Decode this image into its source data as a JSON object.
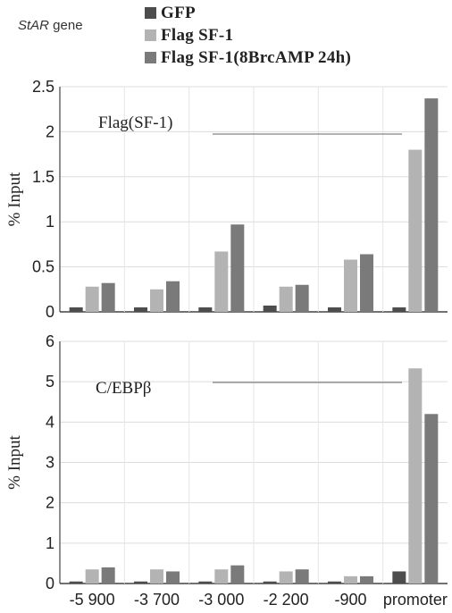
{
  "gene_label": {
    "italic": "StAR",
    "rest": " gene"
  },
  "colors": {
    "GFP": "#4d4d4d",
    "Flag SF-1": "#b3b3b3",
    "Flag SF-1(8BrcAMP 24h)": "#7a7a7a"
  },
  "chart_data": [
    {
      "type": "bar",
      "panel_label": "Flag(SF-1)",
      "ylabel": "% Input",
      "ylim": [
        0,
        2.5
      ],
      "yticks": [
        "0",
        "0.5",
        "1",
        "1.5",
        "2",
        "2.5"
      ],
      "categories": [
        "-5 900",
        "-3 700",
        "-3 000",
        "-2 200",
        "-900",
        "promoter"
      ],
      "series": [
        {
          "name": "GFP",
          "values": [
            0.05,
            0.05,
            0.05,
            0.07,
            0.05,
            0.05
          ]
        },
        {
          "name": "Flag SF-1",
          "values": [
            0.28,
            0.25,
            0.67,
            0.28,
            0.58,
            1.8
          ]
        },
        {
          "name": "Flag SF-1(8BrcAMP 24h)",
          "values": [
            0.32,
            0.34,
            0.97,
            0.3,
            0.64,
            2.37
          ]
        }
      ],
      "grid": true,
      "legend": "top"
    },
    {
      "type": "bar",
      "panel_label": "C/EBPβ",
      "ylabel": "% Input",
      "ylim": [
        0,
        6
      ],
      "yticks": [
        "0",
        "1",
        "2",
        "3",
        "4",
        "5",
        "6"
      ],
      "categories": [
        "-5 900",
        "-3 700",
        "-3 000",
        "-2 200",
        "-900",
        "promoter"
      ],
      "series": [
        {
          "name": "GFP",
          "values": [
            0.05,
            0.05,
            0.05,
            0.05,
            0.05,
            0.3
          ]
        },
        {
          "name": "Flag SF-1",
          "values": [
            0.35,
            0.35,
            0.35,
            0.3,
            0.18,
            5.33
          ]
        },
        {
          "name": "Flag SF-1(8BrcAMP 24h)",
          "values": [
            0.4,
            0.3,
            0.45,
            0.35,
            0.18,
            4.2
          ]
        }
      ],
      "grid": true,
      "xlabels_shown": true
    }
  ]
}
